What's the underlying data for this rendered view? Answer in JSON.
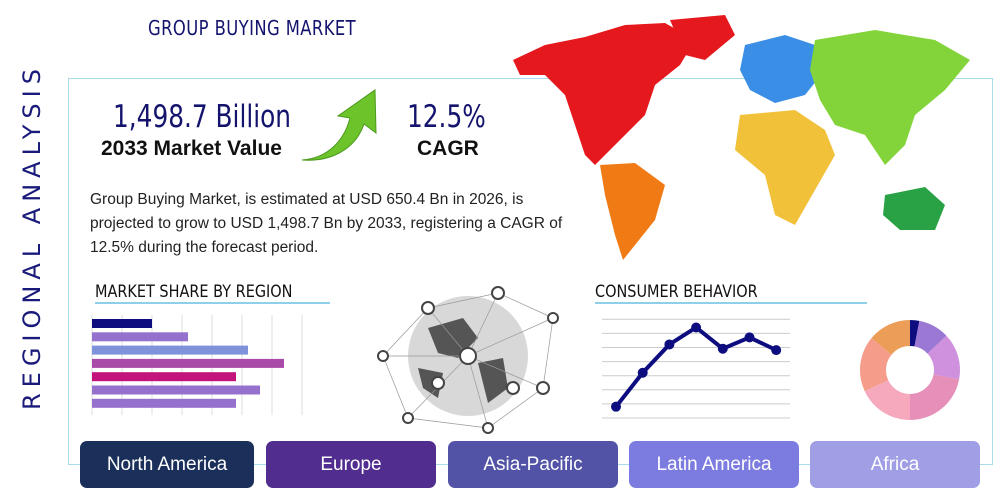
{
  "side_label": "REGIONAL ANALYSIS",
  "title": "GROUP BUYING MARKET",
  "market_value": {
    "value": "1,498.7 Billion",
    "label": "2033 Market Value"
  },
  "cagr": {
    "value": "12.5%",
    "label": "CAGR"
  },
  "description": "Group Buying Market, is estimated at USD 650.4 Bn in 2026, is projected to grow to USD 1,498.7 Bn by 2033, registering a CAGR of 12.5% during the forecast period.",
  "market_share": {
    "heading": "MARKET SHARE BY REGION"
  },
  "consumer": {
    "heading": "CONSUMER BEHAVIOR"
  },
  "chart_data": [
    {
      "type": "bar",
      "orientation": "horizontal",
      "values": [
        2,
        3.2,
        5.2,
        6.4,
        4.8,
        5.6,
        4.8
      ],
      "colors": [
        "#0d0d80",
        "#9570cc",
        "#7f93dc",
        "#aa4aa8",
        "#c2147a",
        "#9570cc",
        "#9570cc"
      ],
      "xlim": [
        0,
        7
      ],
      "grid": true
    },
    {
      "type": "line",
      "x": [
        1,
        2,
        3,
        4,
        5,
        6,
        7
      ],
      "values": [
        0.8,
        3.2,
        5.2,
        6.4,
        4.9,
        5.7,
        4.8
      ],
      "ylim": [
        0,
        7
      ],
      "grid": true,
      "color": "#0d0d80"
    },
    {
      "type": "pie",
      "donut": true,
      "values": [
        3,
        10,
        15,
        22,
        18,
        18,
        14
      ],
      "colors": [
        "#0d0d80",
        "#9a78d4",
        "#cf90dd",
        "#e68fb8",
        "#f6a9bd",
        "#f59d8a",
        "#ec9e58"
      ]
    }
  ],
  "regions": [
    {
      "label": "North America",
      "color": "#1a2f5a"
    },
    {
      "label": "Europe",
      "color": "#512d8f"
    },
    {
      "label": "Asia-Pacific",
      "color": "#5253a6"
    },
    {
      "label": "Latin America",
      "color": "#7b7be0"
    },
    {
      "label": "Africa",
      "color": "#a09ee4"
    }
  ]
}
